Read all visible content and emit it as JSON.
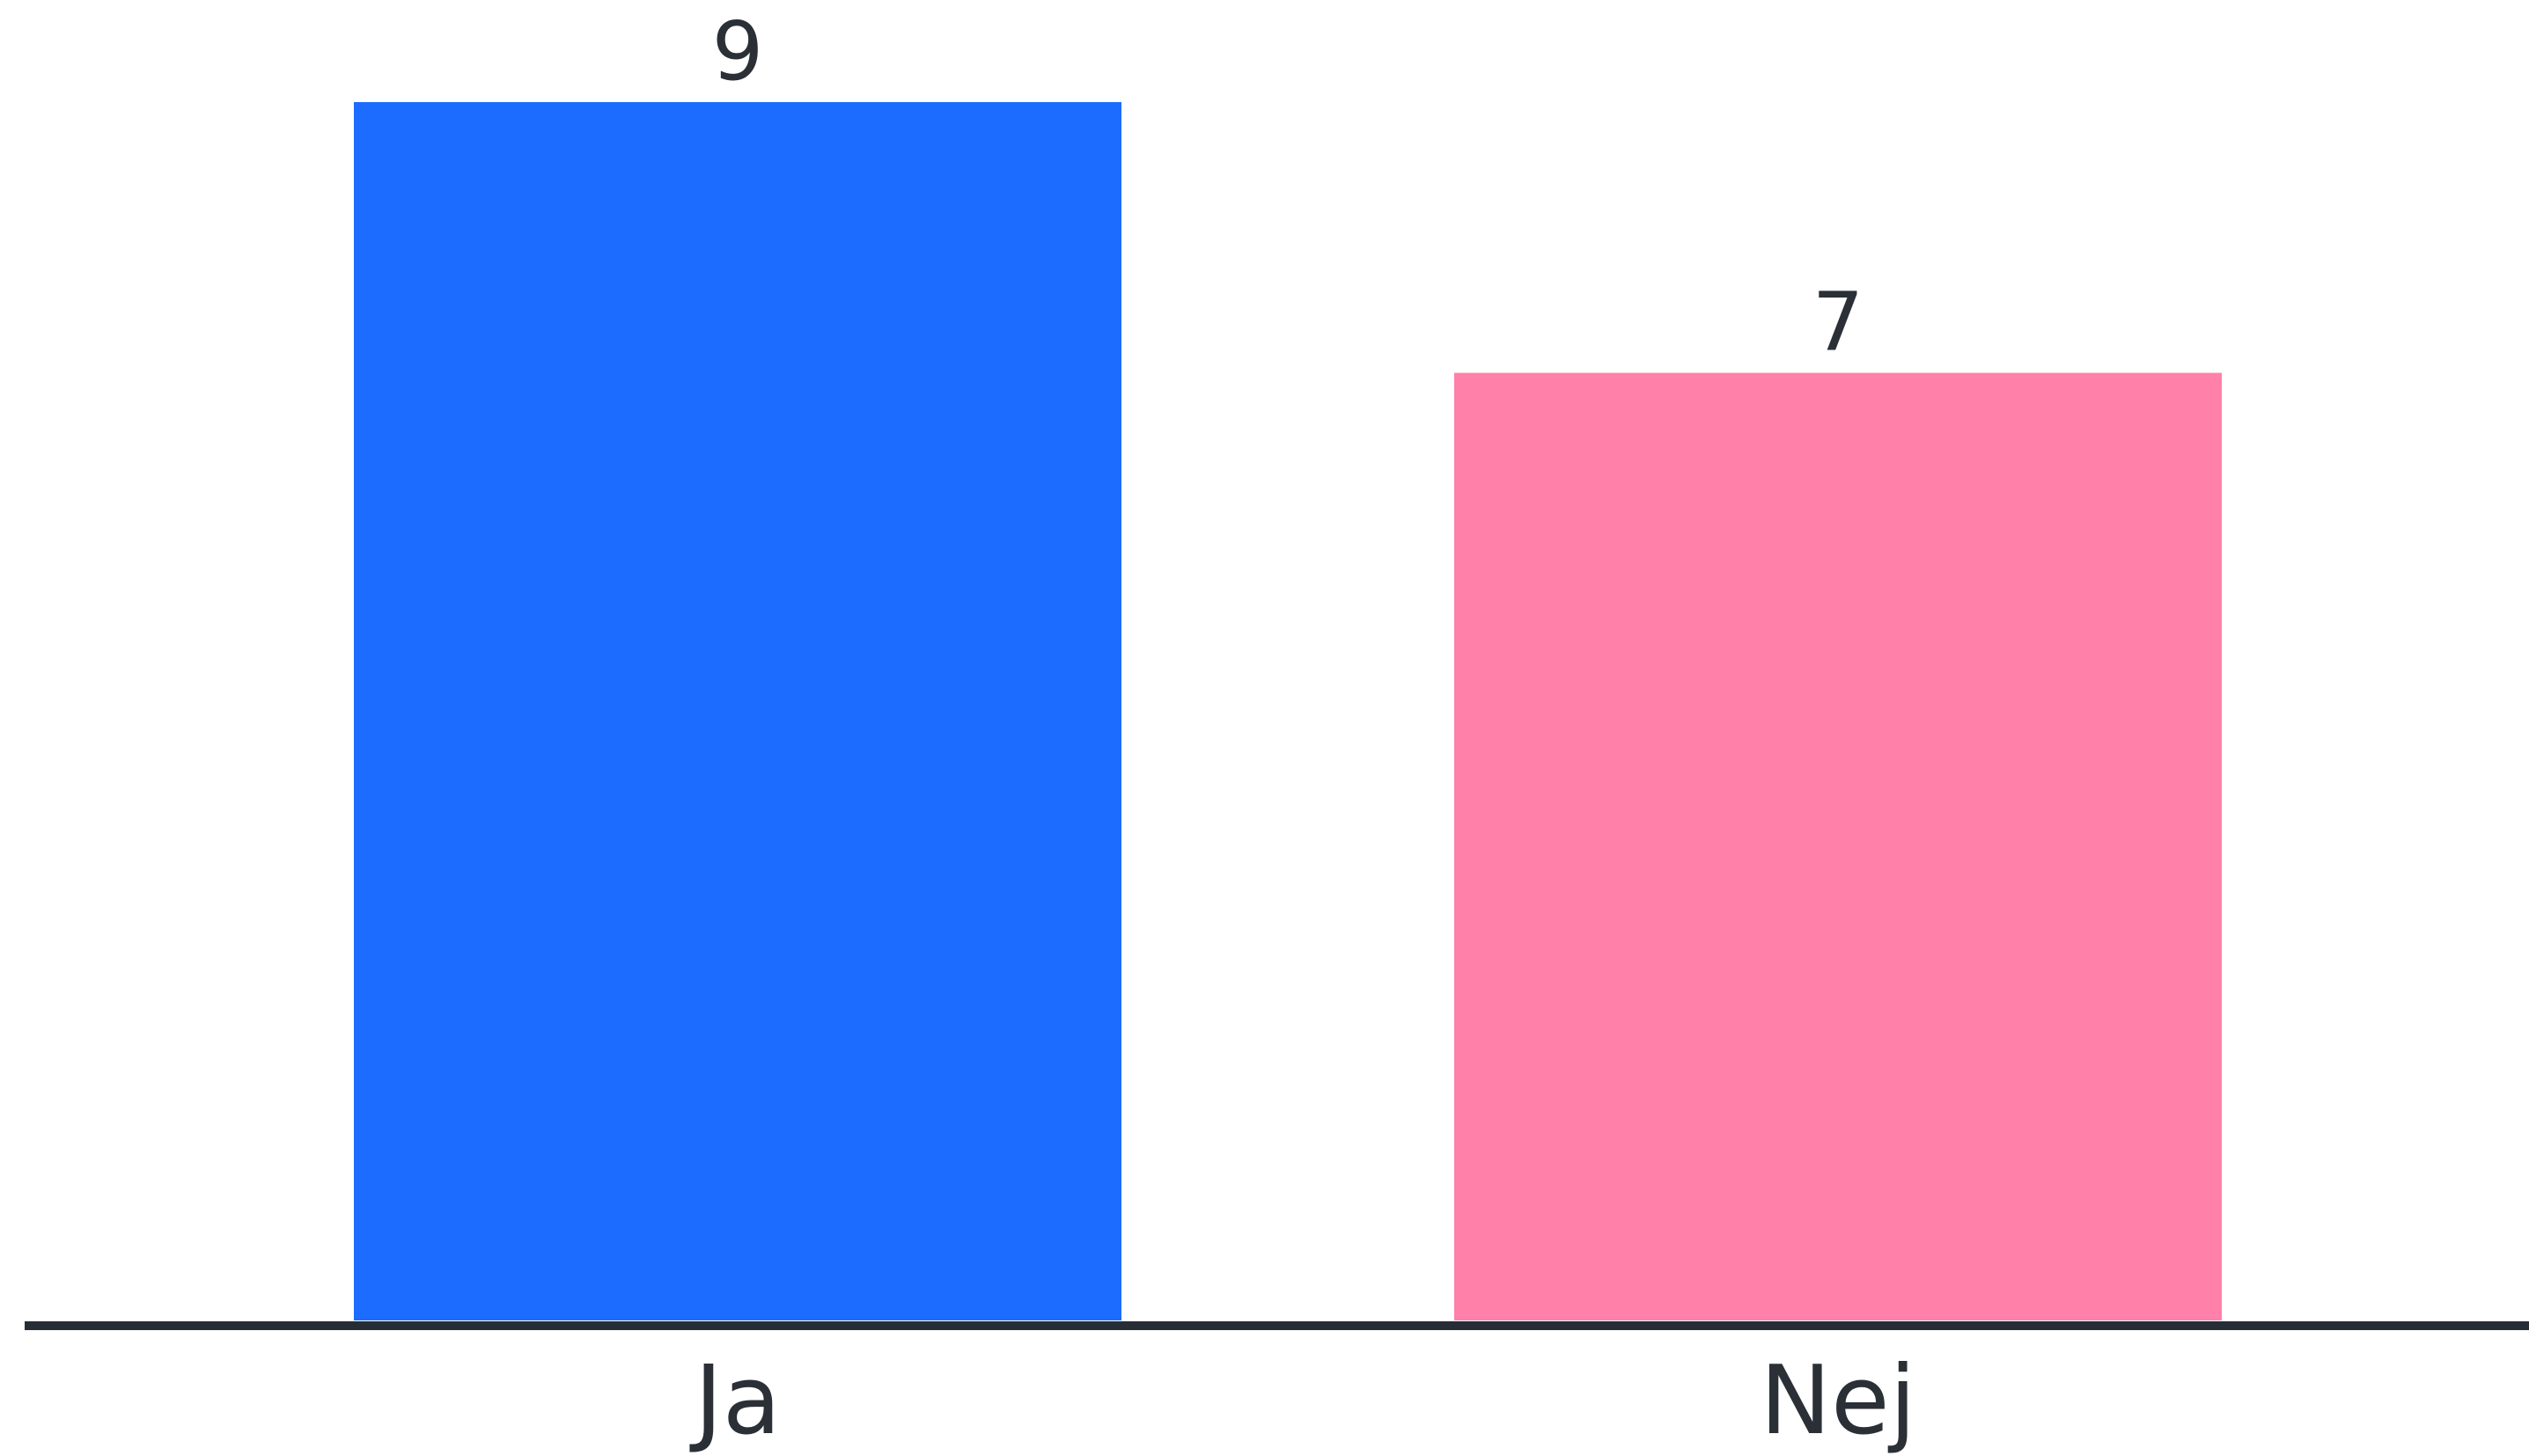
{
  "chart_data": {
    "type": "bar",
    "categories": [
      "Ja",
      "Nej"
    ],
    "values": [
      9,
      7
    ],
    "data_labels": [
      "9",
      "7"
    ],
    "title": "",
    "xlabel": "",
    "ylabel": "",
    "ylim": [
      0,
      9
    ],
    "grid": false,
    "legend": "none",
    "colors": [
      "#1b6cff",
      "#ff80a9"
    ],
    "axis_color": "#272d36",
    "text_color": "#2b3037"
  }
}
